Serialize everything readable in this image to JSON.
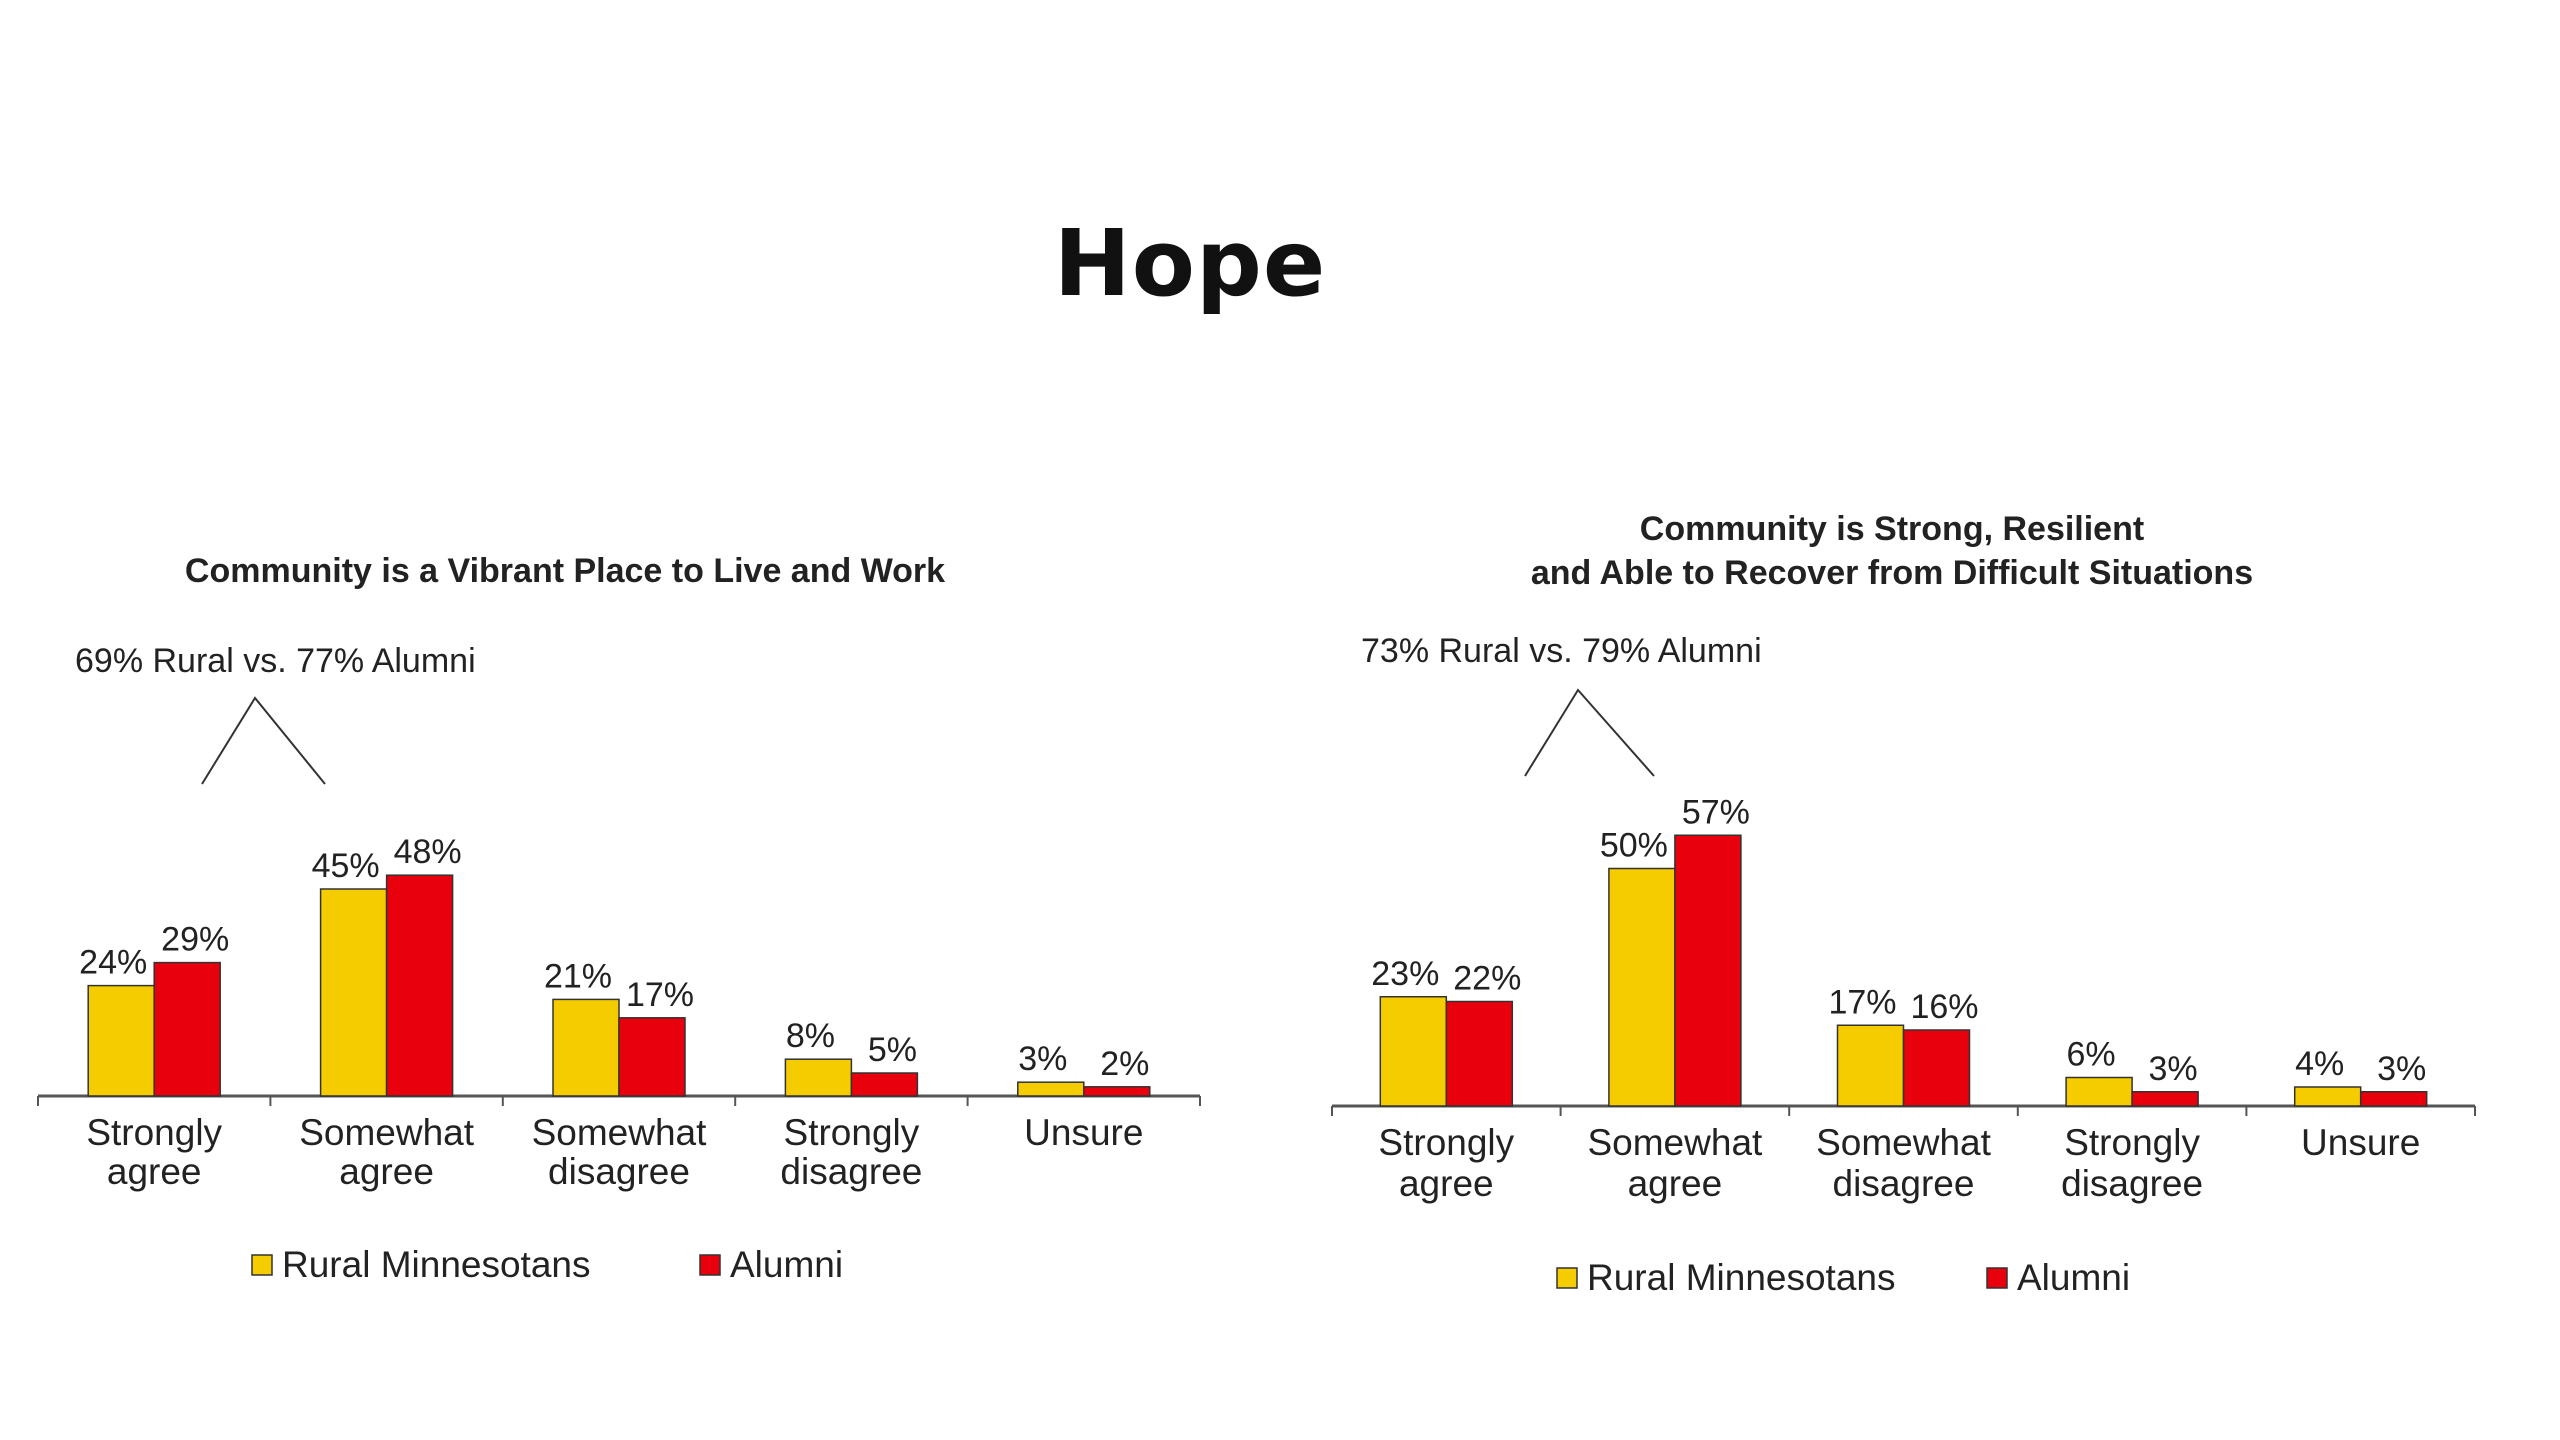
{
  "slide": {
    "title": "Hope"
  },
  "colors": {
    "rural": "#f5cc00",
    "alumni": "#e8000d",
    "axis": "#555555",
    "bar_outline": "#333333"
  },
  "chart_data": [
    {
      "type": "bar",
      "title_lines": [
        "Community is a Vibrant Place to Live and Work"
      ],
      "callout": "69% Rural vs. 77% Alumni",
      "categories": [
        [
          "Strongly",
          "agree"
        ],
        [
          "Somewhat",
          "agree"
        ],
        [
          "Somewhat",
          "disagree"
        ],
        [
          "Strongly",
          "disagree"
        ],
        [
          "Unsure"
        ]
      ],
      "series": [
        {
          "name": "Rural Minnesotans",
          "color": "#f5cc00",
          "values": [
            24,
            45,
            21,
            8,
            3
          ],
          "labels": [
            "24%",
            "45%",
            "21%",
            "8%",
            "3%"
          ]
        },
        {
          "name": "Alumni",
          "color": "#e8000d",
          "values": [
            29,
            48,
            17,
            5,
            2
          ],
          "labels": [
            "29%",
            "48%",
            "17%",
            "5%",
            "2%"
          ]
        }
      ],
      "ylim": [
        0,
        100
      ],
      "legend_position": "bottom",
      "grid": false
    },
    {
      "type": "bar",
      "title_lines": [
        "Community is Strong, Resilient",
        "and Able to Recover from Difficult Situations"
      ],
      "callout": "73% Rural vs. 79% Alumni",
      "categories": [
        [
          "Strongly",
          "agree"
        ],
        [
          "Somewhat",
          "agree"
        ],
        [
          "Somewhat",
          "disagree"
        ],
        [
          "Strongly",
          "disagree"
        ],
        [
          "Unsure"
        ]
      ],
      "series": [
        {
          "name": "Rural Minnesotans",
          "color": "#f5cc00",
          "values": [
            23,
            50,
            17,
            6,
            4
          ],
          "labels": [
            "23%",
            "50%",
            "17%",
            "6%",
            "4%"
          ]
        },
        {
          "name": "Alumni",
          "color": "#e8000d",
          "values": [
            22,
            57,
            16,
            3,
            3
          ],
          "labels": [
            "22%",
            "57%",
            "16%",
            "3%",
            "3%"
          ]
        }
      ],
      "ylim": [
        0,
        100
      ],
      "legend_position": "bottom",
      "grid": false
    }
  ]
}
